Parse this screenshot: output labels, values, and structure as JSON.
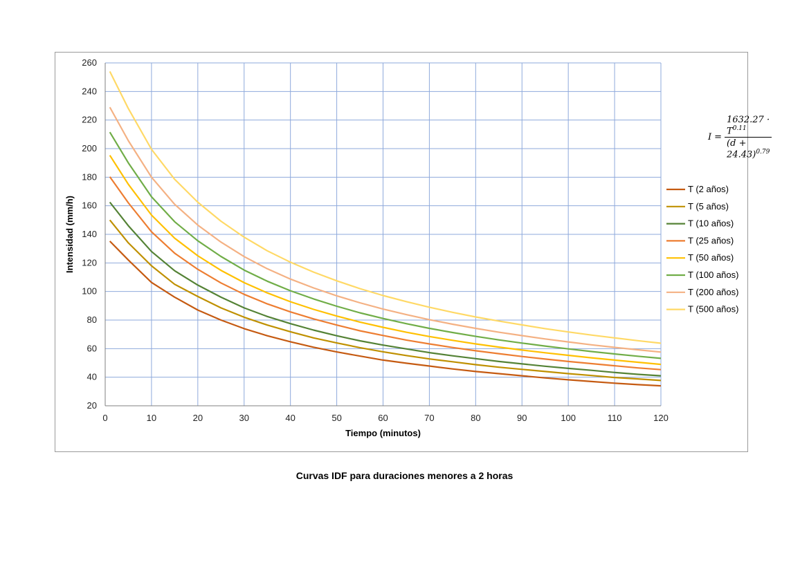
{
  "caption": "Curvas IDF para duraciones menores a 2 horas",
  "formula": {
    "lhs": "I",
    "eq": "=",
    "num_base": "1632.27 · T",
    "num_exp": "0.11",
    "den_base": "(d + 24.43)",
    "den_exp": "0.79"
  },
  "chart_data": {
    "type": "line",
    "title": "",
    "xlabel": "Tiempo (minutos)",
    "ylabel": "Intensidad (mm/h)",
    "xlim": [
      0,
      120
    ],
    "ylim": [
      20,
      260
    ],
    "xticks": [
      0,
      10,
      20,
      30,
      40,
      50,
      60,
      70,
      80,
      90,
      100,
      110,
      120
    ],
    "yticks": [
      20,
      40,
      60,
      80,
      100,
      120,
      140,
      160,
      180,
      200,
      220,
      240,
      260
    ],
    "grid": true,
    "legend_position": "right",
    "x": [
      1,
      5,
      10,
      15,
      20,
      25,
      30,
      35,
      40,
      45,
      50,
      55,
      60,
      65,
      70,
      75,
      80,
      85,
      90,
      95,
      100,
      105,
      110,
      115,
      120
    ],
    "series": [
      {
        "name": "T (2 años)",
        "color": "#C55A11",
        "values": [
          135.2,
          122.0,
          106.3,
          96.0,
          87.0,
          80.0,
          74.0,
          69.0,
          64.8,
          61.0,
          57.7,
          54.8,
          52.0,
          49.8,
          47.8,
          45.8,
          44.0,
          42.5,
          41.0,
          39.5,
          38.2,
          37.0,
          35.8,
          34.8,
          34.0
        ]
      },
      {
        "name": "T (5 años)",
        "color": "#BF9000",
        "values": [
          150.0,
          134.0,
          118.0,
          105.0,
          96.5,
          88.5,
          82.0,
          76.5,
          71.8,
          67.5,
          64.0,
          60.7,
          57.8,
          55.2,
          52.8,
          50.8,
          48.8,
          47.0,
          45.5,
          44.0,
          42.5,
          41.2,
          39.8,
          38.8,
          37.7
        ]
      },
      {
        "name": "T (10 años)",
        "color": "#548235",
        "values": [
          162.5,
          146.0,
          128.0,
          114.5,
          104.5,
          96.0,
          88.5,
          82.5,
          77.5,
          73.0,
          69.0,
          65.5,
          62.5,
          59.8,
          57.2,
          55.0,
          53.0,
          51.0,
          49.3,
          47.7,
          46.2,
          44.8,
          43.3,
          42.0,
          41.0
        ]
      },
      {
        "name": "T (25 años)",
        "color": "#ED7D31",
        "values": [
          180.3,
          162.0,
          141.8,
          126.8,
          115.5,
          106.0,
          98.0,
          91.3,
          85.7,
          80.8,
          76.5,
          72.5,
          69.2,
          66.0,
          63.3,
          60.8,
          58.5,
          56.5,
          54.5,
          52.7,
          51.0,
          49.5,
          48.0,
          46.5,
          45.3
        ]
      },
      {
        "name": "T (50 años)",
        "color": "#FFC000",
        "values": [
          195.3,
          175.0,
          153.5,
          137.3,
          125.0,
          114.8,
          106.2,
          99.0,
          92.8,
          87.5,
          82.8,
          78.6,
          74.9,
          71.5,
          68.5,
          65.8,
          63.3,
          61.1,
          59.0,
          57.1,
          55.3,
          53.6,
          52.0,
          50.5,
          49.0
        ]
      },
      {
        "name": "T (100 años)",
        "color": "#70AD47",
        "values": [
          211.5,
          190.0,
          166.3,
          148.8,
          135.5,
          124.5,
          115.0,
          107.2,
          100.5,
          94.8,
          89.7,
          85.1,
          81.1,
          77.5,
          74.2,
          71.3,
          68.6,
          66.1,
          63.9,
          61.8,
          59.8,
          58.0,
          56.3,
          54.7,
          53.2
        ]
      },
      {
        "name": "T (200 años)",
        "color": "#F4B183",
        "values": [
          229.0,
          205.5,
          180.0,
          161.0,
          146.5,
          134.6,
          124.4,
          115.9,
          108.7,
          102.5,
          97.0,
          92.1,
          87.7,
          83.8,
          80.3,
          77.1,
          74.2,
          71.5,
          69.1,
          66.8,
          64.7,
          62.7,
          60.9,
          59.2,
          57.6
        ]
      },
      {
        "name": "T (500 años)",
        "color": "#FFD966",
        "values": [
          254.0,
          228.0,
          199.5,
          178.5,
          162.5,
          149.2,
          138.0,
          128.5,
          120.5,
          113.6,
          107.5,
          102.0,
          97.2,
          92.9,
          89.0,
          85.4,
          82.2,
          79.3,
          76.6,
          74.0,
          71.7,
          69.5,
          67.5,
          65.6,
          63.8
        ]
      }
    ]
  }
}
